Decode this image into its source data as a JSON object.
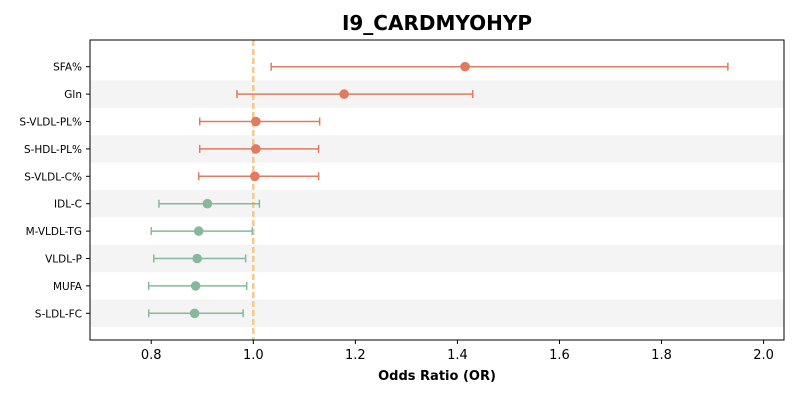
{
  "chart_data": {
    "type": "scatter",
    "title": "I9_CARDMYOHYP",
    "xlabel": "Odds Ratio (OR)",
    "ylabel": "",
    "xlim": [
      0.68,
      2.04
    ],
    "xticks": [
      0.8,
      1.0,
      1.2,
      1.4,
      1.6,
      1.8,
      2.0
    ],
    "xtick_labels": [
      "0.8",
      "1.0",
      "1.2",
      "1.4",
      "1.6",
      "1.8",
      "2.0"
    ],
    "reference_line": 1.0,
    "grid": false,
    "row_banding": true,
    "colors": {
      "increased_risk": "#e07b5f",
      "decreased_risk": "#86b89d",
      "reference_line": "#f5c98a",
      "band": "#f4f4f4"
    },
    "rows": [
      {
        "label": "SFA%",
        "or": 1.415,
        "ci_low": 1.035,
        "ci_high": 1.93,
        "group": "increased_risk"
      },
      {
        "label": "Gln",
        "or": 1.178,
        "ci_low": 0.968,
        "ci_high": 1.43,
        "group": "increased_risk"
      },
      {
        "label": "S-VLDL-PL%",
        "or": 1.005,
        "ci_low": 0.895,
        "ci_high": 1.13,
        "group": "increased_risk"
      },
      {
        "label": "S-HDL-PL%",
        "or": 1.005,
        "ci_low": 0.895,
        "ci_high": 1.128,
        "group": "increased_risk"
      },
      {
        "label": "S-VLDL-C%",
        "or": 1.003,
        "ci_low": 0.893,
        "ci_high": 1.128,
        "group": "increased_risk"
      },
      {
        "label": "IDL-C",
        "or": 0.91,
        "ci_low": 0.815,
        "ci_high": 1.012,
        "group": "decreased_risk"
      },
      {
        "label": "M-VLDL-TG",
        "or": 0.893,
        "ci_low": 0.8,
        "ci_high": 0.998,
        "group": "decreased_risk"
      },
      {
        "label": "VLDL-P",
        "or": 0.89,
        "ci_low": 0.805,
        "ci_high": 0.985,
        "group": "decreased_risk"
      },
      {
        "label": "MUFA",
        "or": 0.887,
        "ci_low": 0.795,
        "ci_high": 0.987,
        "group": "decreased_risk"
      },
      {
        "label": "S-LDL-FC",
        "or": 0.885,
        "ci_low": 0.795,
        "ci_high": 0.98,
        "group": "decreased_risk"
      }
    ]
  }
}
